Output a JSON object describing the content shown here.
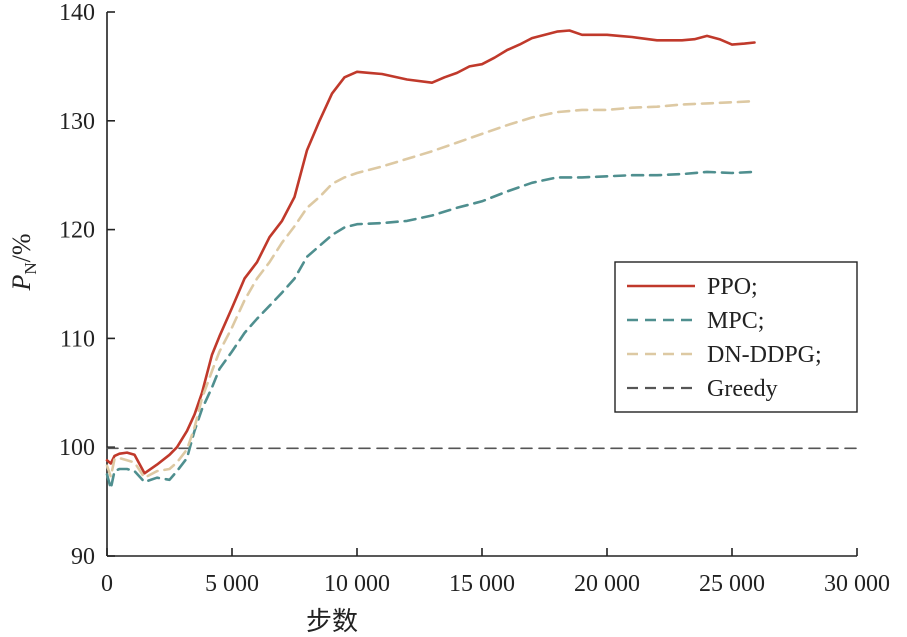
{
  "chart_data": {
    "type": "line",
    "xlabel": "步数",
    "ylabel_main": "P",
    "ylabel_sub": "N",
    "ylabel_unit": "/%",
    "xlim": [
      0,
      30000
    ],
    "ylim": [
      90,
      140
    ],
    "xticks": [
      0,
      5000,
      10000,
      15000,
      20000,
      25000,
      30000
    ],
    "xtick_labels": [
      "0",
      "5 000",
      "10 000",
      "15 000",
      "20 000",
      "25 000",
      "30 000"
    ],
    "yticks": [
      90,
      100,
      110,
      120,
      130,
      140
    ],
    "ytick_labels": [
      "90",
      "100",
      "110",
      "120",
      "130",
      "140"
    ],
    "grid": false,
    "legend_position": "right",
    "series": [
      {
        "name": "PPO;",
        "color": "#c0392b",
        "dash": "solid",
        "x": [
          0,
          150,
          300,
          500,
          800,
          1100,
          1500,
          2000,
          2500,
          2800,
          3200,
          3500,
          3800,
          4200,
          4500,
          5000,
          5500,
          6000,
          6500,
          7000,
          7500,
          8000,
          8500,
          9000,
          9500,
          10000,
          10500,
          11000,
          12000,
          13000,
          13500,
          14000,
          14500,
          15000,
          15500,
          16000,
          16500,
          17000,
          18000,
          18500,
          19000,
          20000,
          20500,
          21000,
          22000,
          23000,
          23500,
          24000,
          24500,
          25000,
          25500,
          25900
        ],
        "y": [
          98.8,
          98.5,
          99.2,
          99.4,
          99.5,
          99.3,
          97.6,
          98.4,
          99.3,
          100.0,
          101.5,
          103.0,
          105.0,
          108.5,
          110.2,
          112.8,
          115.5,
          117.0,
          119.3,
          120.8,
          123.0,
          127.3,
          130.0,
          132.5,
          134.0,
          134.5,
          134.4,
          134.3,
          133.8,
          133.5,
          134.0,
          134.4,
          135.0,
          135.2,
          135.8,
          136.5,
          137.0,
          137.6,
          138.2,
          138.3,
          137.9,
          137.9,
          137.8,
          137.7,
          137.4,
          137.4,
          137.5,
          137.8,
          137.5,
          137.0,
          137.1,
          137.2
        ]
      },
      {
        "name": "MPC;",
        "color": "#4f8f8f",
        "dash": "dashed",
        "x": [
          0,
          150,
          300,
          500,
          800,
          1100,
          1500,
          2000,
          2500,
          2800,
          3200,
          3500,
          3800,
          4200,
          4500,
          5000,
          5500,
          6000,
          6500,
          7000,
          7500,
          8000,
          8500,
          9000,
          9500,
          10000,
          11000,
          12000,
          13000,
          14000,
          15000,
          16000,
          17000,
          18000,
          19000,
          20000,
          21000,
          22000,
          23000,
          24000,
          25000,
          25900
        ],
        "y": [
          97.5,
          96.2,
          97.8,
          98.0,
          98.0,
          97.8,
          96.8,
          97.2,
          97.0,
          97.8,
          99.0,
          101.5,
          103.5,
          105.5,
          107.2,
          108.8,
          110.5,
          111.8,
          113.0,
          114.2,
          115.5,
          117.5,
          118.5,
          119.5,
          120.2,
          120.5,
          120.6,
          120.8,
          121.3,
          122.0,
          122.6,
          123.5,
          124.3,
          124.8,
          124.8,
          124.9,
          125.0,
          125.0,
          125.1,
          125.3,
          125.2,
          125.3
        ]
      },
      {
        "name": "DN-DDPG;",
        "color": "#ddc9a3",
        "dash": "dashed",
        "x": [
          0,
          150,
          300,
          500,
          800,
          1100,
          1500,
          2000,
          2500,
          2800,
          3200,
          3500,
          3800,
          4200,
          4500,
          5000,
          5500,
          6000,
          6500,
          7000,
          7500,
          8000,
          8500,
          9000,
          9500,
          10000,
          11000,
          12000,
          13000,
          14000,
          15000,
          16000,
          17000,
          18000,
          19000,
          20000,
          21000,
          22000,
          23000,
          24000,
          25000,
          25900
        ],
        "y": [
          98.3,
          97.3,
          98.9,
          99.0,
          98.8,
          98.6,
          97.2,
          97.8,
          98.0,
          98.6,
          99.8,
          101.8,
          104.5,
          107.0,
          108.8,
          111.0,
          113.5,
          115.5,
          117.0,
          118.8,
          120.3,
          122.0,
          123.0,
          124.2,
          124.8,
          125.2,
          125.8,
          126.5,
          127.2,
          128.0,
          128.8,
          129.6,
          130.3,
          130.8,
          131.0,
          131.0,
          131.2,
          131.3,
          131.5,
          131.6,
          131.7,
          131.8
        ]
      },
      {
        "name": "Greedy",
        "color": "#555555",
        "dash": "dashed",
        "x": [
          0,
          30000
        ],
        "y": [
          99.9,
          99.9
        ]
      }
    ]
  }
}
